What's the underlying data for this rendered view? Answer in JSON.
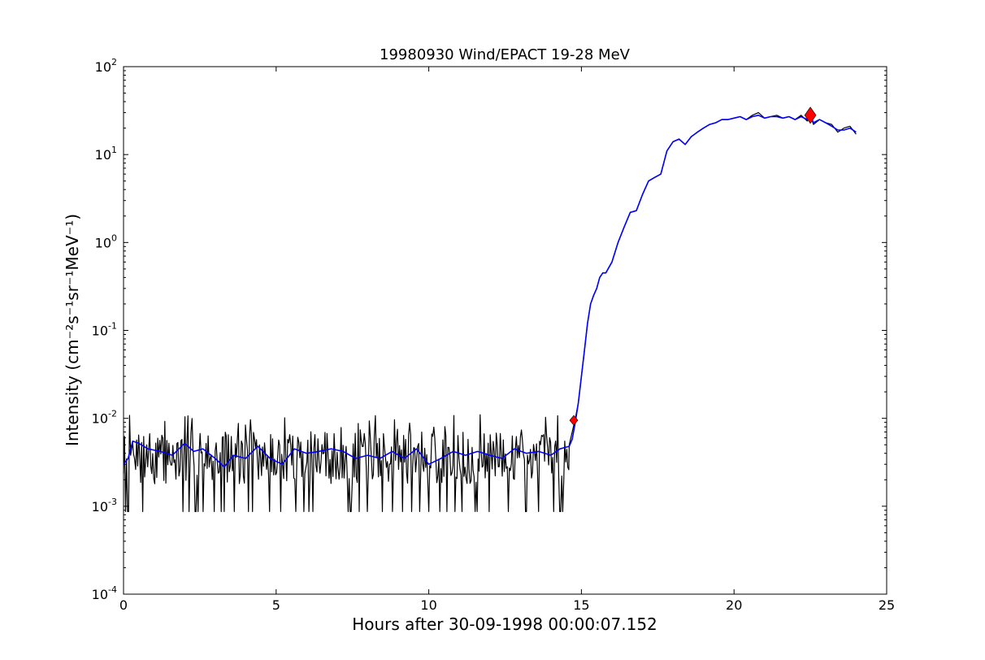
{
  "chart_data": {
    "type": "line",
    "title": "19980930 Wind/EPACT 19-28 MeV",
    "xlabel": "Hours after 30-09-1998 00:00:07.152",
    "ylabel": "Intensity (cm⁻²s⁻¹sr⁻¹MeV⁻¹)",
    "xlim": [
      0,
      25
    ],
    "ylim": [
      0.0001,
      100
    ],
    "y_scale": "log",
    "grid": false,
    "legend": "none",
    "x_ticks": [
      0,
      5,
      10,
      15,
      20,
      25
    ],
    "x_tick_labels": [
      "0",
      "5",
      "10",
      "15",
      "20",
      "25"
    ],
    "y_ticks": [
      0.0001,
      0.001,
      0.01,
      0.1,
      1,
      10,
      100
    ],
    "y_tick_labels": [
      {
        "base": "10",
        "exp": "-4"
      },
      {
        "base": "10",
        "exp": "-3"
      },
      {
        "base": "10",
        "exp": "-2"
      },
      {
        "base": "10",
        "exp": "-1"
      },
      {
        "base": "10",
        "exp": "0"
      },
      {
        "base": "10",
        "exp": "1"
      },
      {
        "base": "10",
        "exp": "2"
      }
    ],
    "series": [
      {
        "color": "#000000",
        "style": "raw",
        "noise": {
          "background_level": 0.004,
          "t_start": 0.0,
          "t_end": 14.6,
          "step": 0.033,
          "min": 0.00087,
          "max": 0.011,
          "seed": 7
        },
        "x": [
          14.6,
          14.7,
          14.8,
          14.9,
          15.0,
          15.1,
          15.2,
          15.3,
          15.4,
          15.5,
          15.6,
          15.7,
          15.8,
          16.0,
          16.2,
          16.4,
          16.6,
          16.8,
          17.0,
          17.2,
          17.4,
          17.6,
          17.8,
          18.0,
          18.2,
          18.4,
          18.6,
          18.8,
          19.0,
          19.2,
          19.4,
          19.6,
          19.8,
          20.0,
          20.2,
          20.4,
          20.6,
          20.8,
          21.0,
          21.2,
          21.4,
          21.6,
          21.8,
          22.0,
          22.2,
          22.4,
          22.5,
          22.6,
          22.8,
          23.0,
          23.2,
          23.4,
          23.6,
          23.8,
          24.0
        ],
        "y": [
          0.005,
          0.007,
          0.01,
          0.015,
          0.03,
          0.06,
          0.12,
          0.2,
          0.25,
          0.3,
          0.4,
          0.45,
          0.45,
          0.6,
          1.0,
          1.5,
          2.2,
          2.3,
          3.5,
          5.0,
          5.5,
          6.0,
          11.0,
          14.0,
          15.0,
          13.0,
          16.0,
          18.0,
          20.0,
          22.0,
          23.0,
          25.0,
          25.0,
          26.0,
          27.0,
          25.0,
          28.0,
          30.0,
          26.0,
          27.0,
          28.0,
          26.0,
          27.0,
          25.0,
          28.0,
          24.0,
          28.0,
          22.0,
          25.0,
          23.0,
          22.0,
          18.0,
          20.0,
          21.0,
          17.0
        ]
      },
      {
        "color": "#0000ff",
        "style": "smoothed",
        "x": [
          0.0,
          0.15,
          0.3,
          0.5,
          0.8,
          1.2,
          1.6,
          2.0,
          2.3,
          2.6,
          3.0,
          3.3,
          3.6,
          4.0,
          4.4,
          4.8,
          5.2,
          5.6,
          6.0,
          6.4,
          6.8,
          7.2,
          7.6,
          8.0,
          8.4,
          8.8,
          9.2,
          9.6,
          10.0,
          10.4,
          10.8,
          11.2,
          11.6,
          12.0,
          12.4,
          12.8,
          13.2,
          13.6,
          14.0,
          14.3,
          14.6,
          14.7,
          14.8,
          14.9,
          15.0,
          15.1,
          15.2,
          15.3,
          15.4,
          15.5,
          15.6,
          15.7,
          15.8,
          16.0,
          16.2,
          16.4,
          16.6,
          16.8,
          17.0,
          17.2,
          17.4,
          17.6,
          17.8,
          18.0,
          18.2,
          18.4,
          18.6,
          18.8,
          19.0,
          19.2,
          19.4,
          19.6,
          19.8,
          20.0,
          20.2,
          20.4,
          20.6,
          20.8,
          21.0,
          21.2,
          21.4,
          21.6,
          21.8,
          22.0,
          22.2,
          22.4,
          22.5,
          22.6,
          22.8,
          23.0,
          23.2,
          23.4,
          23.6,
          23.8,
          24.0
        ],
        "y": [
          0.003,
          0.0035,
          0.0055,
          0.0052,
          0.0045,
          0.0042,
          0.0038,
          0.0052,
          0.0042,
          0.0045,
          0.0035,
          0.0028,
          0.0038,
          0.0035,
          0.0048,
          0.0035,
          0.003,
          0.0045,
          0.004,
          0.0042,
          0.0045,
          0.0042,
          0.0035,
          0.0038,
          0.0035,
          0.0042,
          0.0035,
          0.0045,
          0.003,
          0.0035,
          0.0042,
          0.0038,
          0.0042,
          0.0038,
          0.0035,
          0.0045,
          0.004,
          0.0042,
          0.0038,
          0.0045,
          0.0048,
          0.0058,
          0.009,
          0.015,
          0.03,
          0.06,
          0.12,
          0.2,
          0.25,
          0.3,
          0.4,
          0.45,
          0.45,
          0.6,
          1.0,
          1.5,
          2.2,
          2.3,
          3.5,
          5.0,
          5.5,
          6.0,
          11.0,
          14.0,
          15.0,
          13.0,
          16.0,
          18.0,
          20.0,
          22.0,
          23.0,
          25.0,
          25.0,
          26.0,
          27.0,
          25.0,
          27.0,
          28.0,
          26.0,
          27.0,
          27.0,
          26.0,
          27.0,
          25.0,
          27.0,
          25.0,
          28.0,
          23.0,
          25.0,
          23.0,
          21.0,
          19.0,
          19.0,
          20.0,
          18.0
        ]
      }
    ],
    "markers": [
      {
        "x": 14.75,
        "y": 0.0095,
        "color": "#ff0000",
        "shape": "diamond",
        "size": "small"
      },
      {
        "x": 22.5,
        "y": 28.0,
        "color": "#ff0000",
        "shape": "diamond",
        "size": "large"
      }
    ]
  }
}
